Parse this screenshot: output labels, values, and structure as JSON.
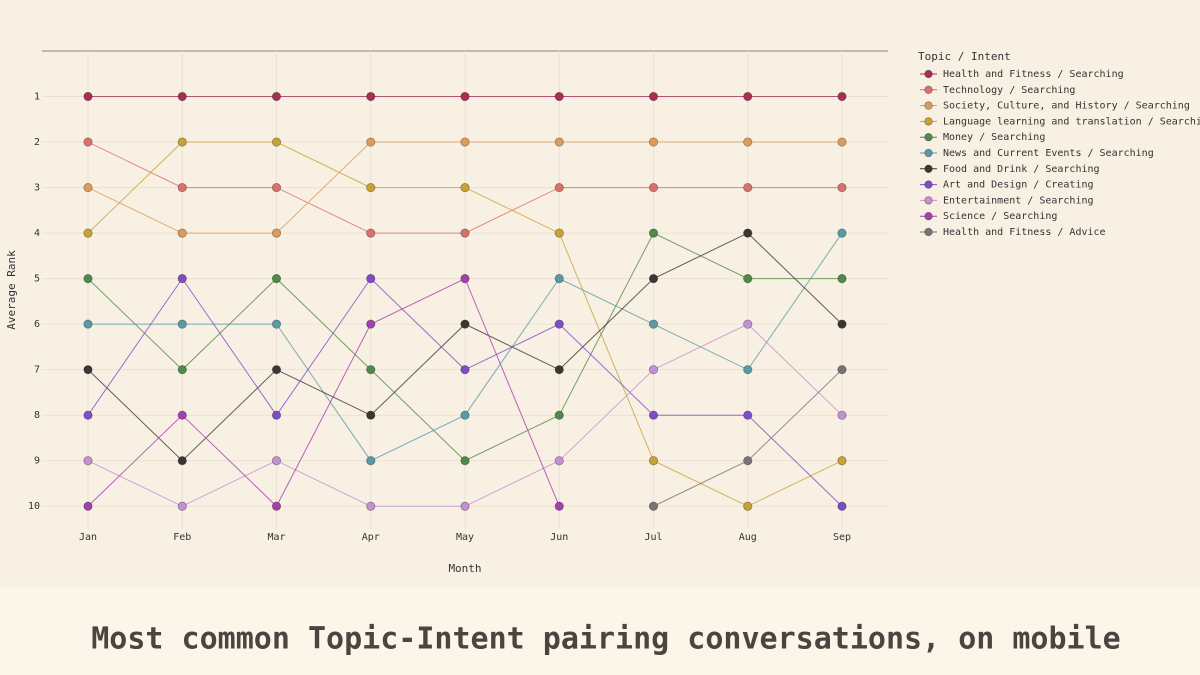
{
  "chart_data": {
    "type": "bump",
    "title": "Most common Topic-Intent pairing conversations, on mobile",
    "x_label": "Month",
    "y_label": "Average Rank",
    "legend_title": "Topic / Intent",
    "categories": [
      "Jan",
      "Feb",
      "Mar",
      "Apr",
      "May",
      "Jun",
      "Jul",
      "Aug",
      "Sep"
    ],
    "ylim": [
      10.5,
      0
    ],
    "yticks": [
      1,
      2,
      3,
      4,
      5,
      6,
      7,
      8,
      9,
      10
    ],
    "grid": true,
    "legend": "right",
    "series": [
      {
        "name": "Health and Fitness / Searching",
        "color": "#a82e58",
        "values": [
          1,
          1,
          1,
          1,
          1,
          1,
          1,
          1,
          1
        ]
      },
      {
        "name": "Technology / Searching",
        "color": "#d8716c",
        "values": [
          2,
          3,
          3,
          4,
          4,
          3,
          3,
          3,
          3
        ]
      },
      {
        "name": "Society, Culture, and History / Searching",
        "color": "#d99c5e",
        "values": [
          3,
          4,
          4,
          2,
          2,
          2,
          2,
          2,
          2
        ]
      },
      {
        "name": "Language learning and translation / Searching",
        "color": "#c8a234",
        "values": [
          4,
          2,
          2,
          3,
          3,
          4,
          9,
          10,
          9
        ]
      },
      {
        "name": "Money / Searching",
        "color": "#4f8b48",
        "values": [
          5,
          7,
          5,
          7,
          9,
          8,
          4,
          5,
          5
        ]
      },
      {
        "name": "News and Current Events / Searching",
        "color": "#5a9aa8",
        "values": [
          6,
          6,
          6,
          9,
          8,
          5,
          6,
          7,
          4
        ]
      },
      {
        "name": "Food and Drink / Searching",
        "color": "#3b3631",
        "values": [
          7,
          9,
          7,
          8,
          6,
          7,
          5,
          4,
          6
        ]
      },
      {
        "name": "Art and Design / Creating",
        "color": "#7e4cc6",
        "values": [
          8,
          5,
          8,
          5,
          7,
          6,
          8,
          8,
          10
        ]
      },
      {
        "name": "Entertainment / Searching",
        "color": "#c590d2",
        "values": [
          9,
          10,
          9,
          10,
          10,
          9,
          7,
          6,
          8
        ]
      },
      {
        "name": "Science / Searching",
        "color": "#a43fb0",
        "values": [
          10,
          8,
          10,
          6,
          5,
          10,
          null,
          null,
          null
        ]
      },
      {
        "name": "Health and Fitness / Advice",
        "color": "#7b7373",
        "values": [
          null,
          null,
          null,
          null,
          null,
          null,
          10,
          9,
          7
        ]
      }
    ]
  }
}
